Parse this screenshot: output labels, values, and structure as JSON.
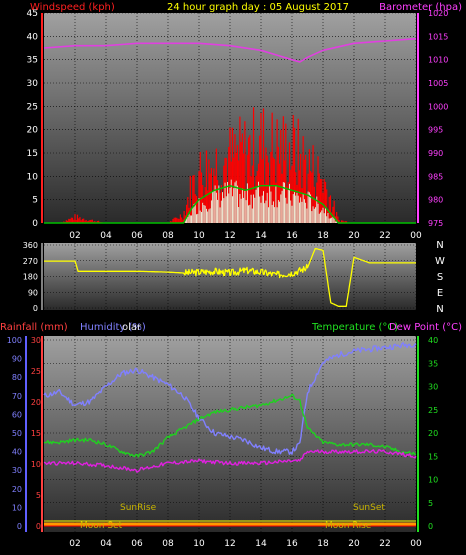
{
  "header": {
    "left_label": "Windspeed (kph)",
    "center_label": "24 hour graph day : 05 August 2017",
    "right_label": "Barometer (hpa)"
  },
  "colors": {
    "wind_label": "#ff2020",
    "baro_label": "#ff40ff",
    "title": "#ffff00",
    "wind_bar": "#ff0000",
    "wind_avg": "#00c000",
    "gust_light": "#e8ffe8",
    "baro_line": "#e040e0",
    "dir_line": "#ffff00",
    "humidity": "#8080ff",
    "temperature": "#20d020",
    "dewpoint": "#e020e0",
    "rain_axis": "#ff4040",
    "humidity_axis": "#6060ff",
    "sun_text": "#c8b400",
    "moon_text": "#c8b400"
  },
  "x_ticks": [
    "02",
    "04",
    "06",
    "08",
    "10",
    "12",
    "14",
    "16",
    "18",
    "20",
    "22",
    "00"
  ],
  "panel1": {
    "wind_ticks": [
      "0",
      "5",
      "10",
      "15",
      "20",
      "25",
      "30",
      "35",
      "40",
      "45"
    ],
    "baro_ticks": [
      "975",
      "980",
      "985",
      "990",
      "995",
      "1000",
      "1005",
      "1010",
      "1015",
      "1020"
    ]
  },
  "panel2": {
    "dir_ticks": [
      "0",
      "90",
      "180",
      "270",
      "360"
    ],
    "compass": [
      "N",
      "W",
      "S",
      "E",
      "N"
    ]
  },
  "panel3": {
    "labels": {
      "rainfall": "Rainfall (mm)",
      "humidity": "Humidity (%)",
      "solar": "olar",
      "temperature": "Temperature (°C)",
      "dewpoint": "Dew Point (°C)"
    },
    "humidity_ticks": [
      "0",
      "10",
      "20",
      "30",
      "40",
      "50",
      "60",
      "70",
      "80",
      "90",
      "100"
    ],
    "rain_ticks": [
      "0",
      "5",
      "10",
      "15",
      "20",
      "25",
      "30"
    ],
    "temp_ticks": [
      "0",
      "5",
      "10",
      "15",
      "20",
      "25",
      "30",
      "35",
      "40"
    ],
    "annotations": {
      "sunrise": "SunRise",
      "sunset": "SunSet",
      "moonset": "Moon Set",
      "moonrise": "Moon Rise"
    }
  },
  "chart_data": [
    {
      "type": "line",
      "title": "24 hour graph day : 05 August 2017",
      "x_unit": "hour",
      "x_range": [
        0,
        24
      ],
      "series": [
        {
          "name": "Barometer (hpa)",
          "axis": "right",
          "ylim": [
            975,
            1020
          ],
          "x": [
            0,
            2,
            4,
            6,
            8,
            10,
            12,
            14,
            15,
            16,
            16.5,
            17,
            18,
            20,
            22,
            24
          ],
          "values": [
            1012.5,
            1013,
            1013,
            1013.5,
            1013.5,
            1013.5,
            1013,
            1012,
            1011,
            1010,
            1009.5,
            1010.5,
            1012,
            1013.5,
            1014,
            1014.5
          ]
        },
        {
          "name": "Windspeed (kph)",
          "axis": "left",
          "ylim": [
            0,
            45
          ],
          "x": [
            0,
            1,
            2,
            3,
            4,
            5,
            6,
            7,
            8,
            9,
            9.5,
            10,
            11,
            12,
            13,
            14,
            15,
            16,
            17,
            18,
            18.5,
            19,
            20,
            24
          ],
          "values": [
            0,
            0,
            2,
            1,
            0,
            0,
            0,
            0,
            0,
            3,
            12,
            17,
            20,
            22,
            24,
            27,
            25,
            25,
            20,
            15,
            8,
            1,
            0,
            0
          ]
        },
        {
          "name": "Average wind (kph)",
          "axis": "left",
          "ylim": [
            0,
            45
          ],
          "x": [
            0,
            9,
            9.5,
            10,
            11,
            12,
            13,
            14,
            15,
            16,
            17,
            18,
            18.5,
            19,
            24
          ],
          "values": [
            0,
            0,
            3,
            5,
            7,
            8,
            7,
            8,
            8,
            7,
            6,
            4,
            2,
            0,
            0
          ]
        }
      ]
    },
    {
      "type": "line",
      "title": "",
      "x_unit": "hour",
      "x_range": [
        0,
        24
      ],
      "series": [
        {
          "name": "Wind direction",
          "ylim": [
            0,
            360
          ],
          "x": [
            0,
            2,
            2.2,
            4,
            6,
            8,
            9,
            10,
            11,
            12,
            13,
            14,
            15,
            16,
            17,
            17.5,
            18,
            18.5,
            19,
            19.5,
            20,
            21,
            22,
            24
          ],
          "values": [
            268,
            268,
            210,
            210,
            210,
            205,
            200,
            205,
            210,
            200,
            215,
            205,
            190,
            200,
            230,
            340,
            330,
            30,
            10,
            10,
            290,
            258,
            258,
            258
          ]
        }
      ]
    },
    {
      "type": "line",
      "title": "",
      "x_unit": "hour",
      "x_range": [
        0,
        24
      ],
      "series": [
        {
          "name": "Humidity (%)",
          "axis": "humidity",
          "ylim": [
            0,
            100
          ],
          "x": [
            0,
            1,
            2,
            3,
            4,
            5,
            6,
            7,
            8,
            9,
            10,
            11,
            12,
            13,
            14,
            15,
            16,
            16.5,
            17,
            18,
            19,
            20,
            21,
            22,
            23,
            24
          ],
          "values": [
            70,
            72,
            65,
            67,
            75,
            82,
            84,
            80,
            76,
            70,
            58,
            50,
            48,
            46,
            42,
            40,
            40,
            44,
            72,
            88,
            92,
            94,
            95,
            96,
            97,
            98
          ]
        },
        {
          "name": "Temperature (°C)",
          "axis": "temp",
          "ylim": [
            0,
            40
          ],
          "x": [
            0,
            1,
            2,
            3,
            4,
            5,
            6,
            7,
            8,
            9,
            10,
            11,
            12,
            13,
            14,
            15,
            16,
            16.5,
            17,
            18,
            19,
            20,
            21,
            22,
            23,
            24
          ],
          "values": [
            18,
            18,
            18.5,
            18.5,
            17.5,
            16,
            15,
            16,
            19,
            21,
            23,
            24.5,
            25,
            25.5,
            26,
            27,
            28,
            27,
            21,
            18,
            17.5,
            17.5,
            17.5,
            17,
            16,
            15.5
          ]
        },
        {
          "name": "Dew Point (°C)",
          "axis": "temp",
          "ylim": [
            0,
            40
          ],
          "x": [
            0,
            2,
            4,
            6,
            8,
            10,
            12,
            14,
            16,
            16.5,
            17,
            18,
            20,
            22,
            23,
            24
          ],
          "values": [
            13.5,
            13.5,
            13,
            12,
            13.5,
            14,
            13.5,
            13.5,
            14,
            14,
            16,
            16,
            16,
            16,
            15.5,
            15
          ]
        },
        {
          "name": "Rainfall (mm)",
          "axis": "rain",
          "ylim": [
            0,
            30
          ],
          "x": [
            0,
            24
          ],
          "values": [
            0,
            0
          ]
        }
      ]
    }
  ]
}
